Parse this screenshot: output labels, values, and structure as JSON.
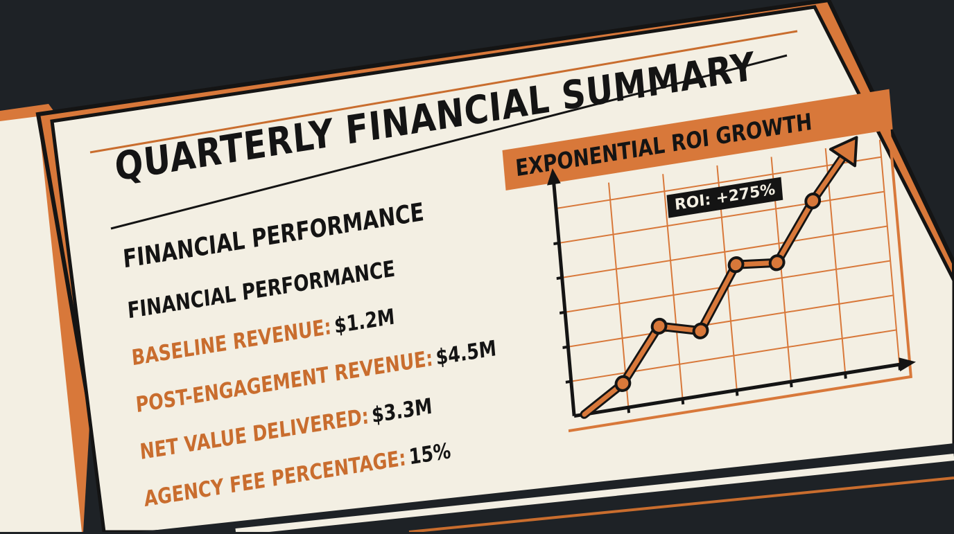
{
  "document": {
    "title": "QUARTERLY FINANCIAL SUMMARY",
    "section_heading": "FINANCIAL PERFORMANCE"
  },
  "metrics": [
    {
      "label": "FINANCIAL PERFORMANCE",
      "value": ""
    },
    {
      "label": "BASELINE REVENUE:",
      "value": "$1.2M"
    },
    {
      "label": "POST-ENGAGEMENT REVENUE:",
      "value": "$4.5M"
    },
    {
      "label": "NET VALUE DELIVERED:",
      "value": "$3.3M"
    },
    {
      "label": "AGENCY FEE PERCENTAGE:",
      "value": "15%"
    }
  ],
  "chart_data": {
    "type": "line",
    "title": "EXPONENTIAL ROI GROWTH",
    "xlabel": "",
    "ylabel": "",
    "grid": true,
    "ylim": [
      0,
      10
    ],
    "x": [
      0,
      1,
      2,
      3,
      4,
      5,
      6,
      7
    ],
    "series": [
      {
        "values": [
          0,
          1.1,
          3.4,
          2.9,
          5.6,
          5.4,
          7.9,
          10
        ]
      }
    ],
    "annotations": [
      "ROI: +275%"
    ]
  },
  "colors": {
    "background": "#1e2226",
    "paper": "#f3efe3",
    "accent_orange": "#d8783a",
    "ink": "#141414"
  }
}
